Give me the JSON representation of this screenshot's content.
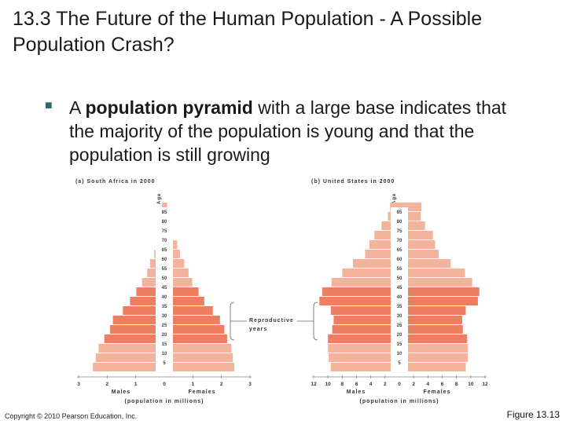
{
  "slide": {
    "title": "13.3 The Future of the Human Population - A Possible Population Crash?",
    "bullet_pre": "A ",
    "bullet_bold": "population pyramid",
    "bullet_post": " with a large base indicates that the majority of the population is young and that the population is still growing",
    "copyright": "Copyright © 2010 Pearson Education, Inc.",
    "figure_label": "Figure 13.13"
  },
  "colors": {
    "bar_light": "#f4b49c",
    "bar_dark": "#ec7f5f",
    "bullet": "#2e6b6b"
  },
  "annotation": {
    "line1": "Reproductive",
    "line2": "years"
  },
  "chart_data": [
    {
      "type": "bar",
      "subtype": "population-pyramid",
      "title": "(a) South Africa in 2000",
      "ylabel": "Age",
      "xlabel_left": "Males",
      "xlabel_right": "Females",
      "xlabel": "(population in millions)",
      "x_ticks_left": [
        "3",
        "2",
        "1"
      ],
      "x_ticks_right": [
        "1",
        "2",
        "3"
      ],
      "x_zero": "0",
      "xlim": [
        0,
        3
      ],
      "categories": [
        "0",
        "5",
        "10",
        "15",
        "20",
        "25",
        "30",
        "35",
        "40",
        "45",
        "50",
        "55",
        "60",
        "65",
        "70",
        "75",
        "80",
        "85"
      ],
      "age_labels": [
        "5",
        "10",
        "15",
        "20",
        "25",
        "30",
        "35",
        "40",
        "45",
        "50",
        "55",
        "60",
        "65",
        "70",
        "75",
        "80",
        "85"
      ],
      "reproductive": [
        "15",
        "20",
        "25",
        "30",
        "35",
        "40"
      ],
      "series": [
        {
          "name": "Males",
          "values": [
            2.5,
            2.4,
            2.3,
            2.1,
            1.9,
            1.8,
            1.45,
            1.2,
            0.98,
            0.78,
            0.6,
            0.5,
            0.35,
            0.3,
            0.18,
            0.15,
            0.1,
            0.08
          ]
        },
        {
          "name": "Females",
          "values": [
            2.45,
            2.4,
            2.35,
            2.2,
            2.1,
            1.95,
            1.7,
            1.4,
            1.2,
            0.98,
            0.85,
            0.7,
            0.55,
            0.45,
            0.3,
            0.2,
            0.15,
            0.1
          ]
        }
      ]
    },
    {
      "type": "bar",
      "subtype": "population-pyramid",
      "title": "(b) United States in 2000",
      "ylabel": "Age",
      "xlabel_left": "Males",
      "xlabel_right": "Females",
      "xlabel": "(population in millions)",
      "x_ticks_left": [
        "12",
        "10",
        "8",
        "6",
        "4",
        "2"
      ],
      "x_ticks_right": [
        "2",
        "4",
        "6",
        "8",
        "10",
        "12"
      ],
      "x_zero": "0",
      "xlim": [
        0,
        12
      ],
      "categories": [
        "0",
        "5",
        "10",
        "15",
        "20",
        "25",
        "30",
        "35",
        "40",
        "45",
        "50",
        "55",
        "60",
        "65",
        "70",
        "75",
        "80",
        "85"
      ],
      "age_labels": [
        "5",
        "10",
        "15",
        "20",
        "25",
        "30",
        "35",
        "40",
        "45",
        "50",
        "55",
        "60",
        "65",
        "70",
        "75",
        "80",
        "85"
      ],
      "reproductive": [
        "15",
        "20",
        "25",
        "30",
        "35",
        "40"
      ],
      "series": [
        {
          "name": "Males",
          "values": [
            9.6,
            9.9,
            10.0,
            10.0,
            9.4,
            9.2,
            9.6,
            11.2,
            10.8,
            9.5,
            8.0,
            6.5,
            4.8,
            4.2,
            3.5,
            2.5,
            1.6,
            1.3
          ]
        },
        {
          "name": "Females",
          "values": [
            9.3,
            9.6,
            9.6,
            9.5,
            8.9,
            8.8,
            9.3,
            11.0,
            11.2,
            10.2,
            9.2,
            7.2,
            5.5,
            5.0,
            4.7,
            3.6,
            3.0,
            3.1
          ]
        }
      ]
    }
  ]
}
